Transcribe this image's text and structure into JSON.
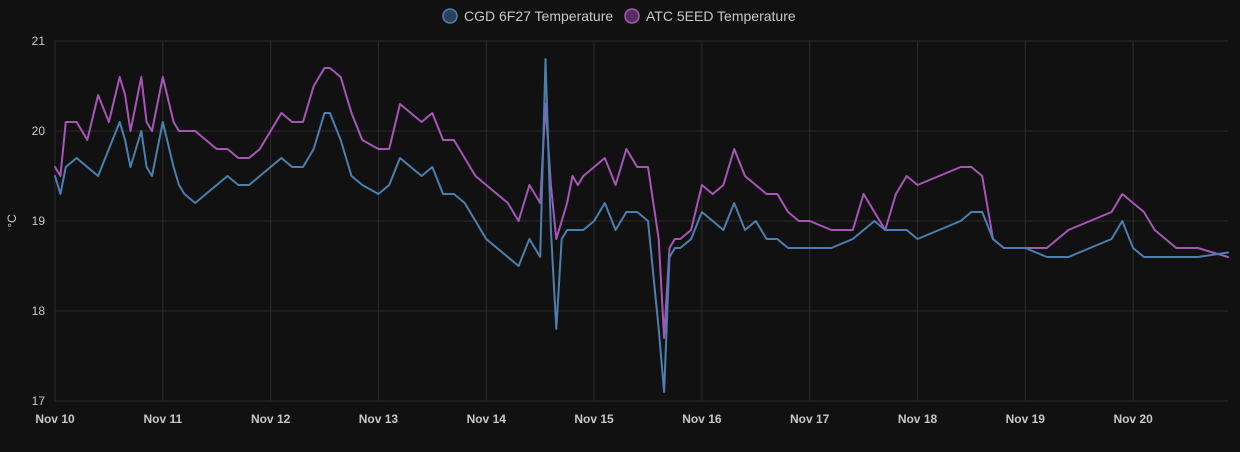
{
  "chart_data": {
    "type": "line",
    "title": "",
    "xlabel": "",
    "ylabel": "°C",
    "ylim": [
      17,
      21
    ],
    "yticks": [
      17,
      18,
      19,
      20,
      21
    ],
    "xlim": [
      0,
      10.88
    ],
    "xticks": [
      {
        "value": 0,
        "label": "Nov 10"
      },
      {
        "value": 1,
        "label": "Nov 11"
      },
      {
        "value": 2,
        "label": "Nov 12"
      },
      {
        "value": 3,
        "label": "Nov 13"
      },
      {
        "value": 4,
        "label": "Nov 14"
      },
      {
        "value": 5,
        "label": "Nov 15"
      },
      {
        "value": 6,
        "label": "Nov 16"
      },
      {
        "value": 7,
        "label": "Nov 17"
      },
      {
        "value": 8,
        "label": "Nov 18"
      },
      {
        "value": 9,
        "label": "Nov 19"
      },
      {
        "value": 10,
        "label": "Nov 20"
      }
    ],
    "grid": true,
    "legend_position": "top-center",
    "series": [
      {
        "name": "CGD 6F27 Temperature",
        "color": "#4a7fb0",
        "x": [
          0,
          0.05,
          0.1,
          0.2,
          0.3,
          0.4,
          0.5,
          0.6,
          0.65,
          0.7,
          0.8,
          0.85,
          0.9,
          1.0,
          1.1,
          1.15,
          1.2,
          1.3,
          1.4,
          1.5,
          1.6,
          1.7,
          1.8,
          1.9,
          2.0,
          2.1,
          2.2,
          2.3,
          2.4,
          2.5,
          2.55,
          2.65,
          2.75,
          2.85,
          3.0,
          3.1,
          3.2,
          3.3,
          3.4,
          3.5,
          3.6,
          3.7,
          3.8,
          3.9,
          4.0,
          4.1,
          4.2,
          4.3,
          4.4,
          4.5,
          4.55,
          4.6,
          4.65,
          4.7,
          4.75,
          4.8,
          4.85,
          4.9,
          5.0,
          5.1,
          5.2,
          5.3,
          5.4,
          5.5,
          5.6,
          5.65,
          5.7,
          5.75,
          5.8,
          5.9,
          6.0,
          6.1,
          6.2,
          6.3,
          6.4,
          6.5,
          6.6,
          6.7,
          6.8,
          6.9,
          7.0,
          7.2,
          7.4,
          7.5,
          7.6,
          7.7,
          7.8,
          7.9,
          8.0,
          8.2,
          8.4,
          8.5,
          8.6,
          8.7,
          8.8,
          9.0,
          9.2,
          9.4,
          9.6,
          9.8,
          9.9,
          10.0,
          10.1,
          10.2,
          10.4,
          10.6,
          10.88
        ],
        "values": [
          19.5,
          19.3,
          19.6,
          19.7,
          19.6,
          19.5,
          19.8,
          20.1,
          19.9,
          19.6,
          20.0,
          19.6,
          19.5,
          20.1,
          19.6,
          19.4,
          19.3,
          19.2,
          19.3,
          19.4,
          19.5,
          19.4,
          19.4,
          19.5,
          19.6,
          19.7,
          19.6,
          19.6,
          19.8,
          20.2,
          20.2,
          19.9,
          19.5,
          19.4,
          19.3,
          19.4,
          19.7,
          19.6,
          19.5,
          19.6,
          19.3,
          19.3,
          19.2,
          19.0,
          18.8,
          18.7,
          18.6,
          18.5,
          18.8,
          18.6,
          20.8,
          18.9,
          17.8,
          18.8,
          18.9,
          18.9,
          18.9,
          18.9,
          19.0,
          19.2,
          18.9,
          19.1,
          19.1,
          19.0,
          17.8,
          17.1,
          18.6,
          18.7,
          18.7,
          18.8,
          19.1,
          19.0,
          18.9,
          19.2,
          18.9,
          19.0,
          18.8,
          18.8,
          18.7,
          18.7,
          18.7,
          18.7,
          18.8,
          18.9,
          19.0,
          18.9,
          18.9,
          18.9,
          18.8,
          18.9,
          19.0,
          19.1,
          19.1,
          18.8,
          18.7,
          18.7,
          18.6,
          18.6,
          18.7,
          18.8,
          19.0,
          18.7,
          18.6,
          18.6,
          18.6,
          18.6,
          18.65
        ]
      },
      {
        "name": "ATC 5EED Temperature",
        "color": "#a855b8",
        "x": [
          0,
          0.05,
          0.1,
          0.2,
          0.3,
          0.4,
          0.5,
          0.6,
          0.65,
          0.7,
          0.8,
          0.85,
          0.9,
          1.0,
          1.1,
          1.15,
          1.2,
          1.3,
          1.4,
          1.5,
          1.6,
          1.7,
          1.8,
          1.9,
          2.0,
          2.1,
          2.2,
          2.3,
          2.4,
          2.5,
          2.55,
          2.65,
          2.75,
          2.85,
          3.0,
          3.1,
          3.2,
          3.3,
          3.4,
          3.5,
          3.6,
          3.7,
          3.8,
          3.9,
          4.0,
          4.1,
          4.2,
          4.3,
          4.4,
          4.5,
          4.55,
          4.6,
          4.65,
          4.7,
          4.75,
          4.8,
          4.85,
          4.9,
          5.0,
          5.1,
          5.2,
          5.3,
          5.4,
          5.5,
          5.6,
          5.65,
          5.7,
          5.75,
          5.8,
          5.9,
          6.0,
          6.1,
          6.2,
          6.3,
          6.4,
          6.5,
          6.6,
          6.7,
          6.8,
          6.9,
          7.0,
          7.2,
          7.4,
          7.5,
          7.6,
          7.7,
          7.8,
          7.9,
          8.0,
          8.2,
          8.4,
          8.5,
          8.6,
          8.7,
          8.8,
          9.0,
          9.2,
          9.4,
          9.6,
          9.8,
          9.9,
          10.0,
          10.1,
          10.2,
          10.4,
          10.6,
          10.88
        ],
        "values": [
          19.6,
          19.5,
          20.1,
          20.1,
          19.9,
          20.4,
          20.1,
          20.6,
          20.4,
          20.0,
          20.6,
          20.1,
          20.0,
          20.6,
          20.1,
          20.0,
          20.0,
          20.0,
          19.9,
          19.8,
          19.8,
          19.7,
          19.7,
          19.8,
          20.0,
          20.2,
          20.1,
          20.1,
          20.5,
          20.7,
          20.7,
          20.6,
          20.2,
          19.9,
          19.8,
          19.8,
          20.3,
          20.2,
          20.1,
          20.2,
          19.9,
          19.9,
          19.7,
          19.5,
          19.4,
          19.3,
          19.2,
          19.0,
          19.4,
          19.2,
          20.3,
          19.4,
          18.8,
          19.0,
          19.2,
          19.5,
          19.4,
          19.5,
          19.6,
          19.7,
          19.4,
          19.8,
          19.6,
          19.6,
          18.8,
          17.7,
          18.7,
          18.8,
          18.8,
          18.9,
          19.4,
          19.3,
          19.4,
          19.8,
          19.5,
          19.4,
          19.3,
          19.3,
          19.1,
          19.0,
          19.0,
          18.9,
          18.9,
          19.3,
          19.1,
          18.9,
          19.3,
          19.5,
          19.4,
          19.5,
          19.6,
          19.6,
          19.5,
          18.8,
          18.7,
          18.7,
          18.7,
          18.9,
          19.0,
          19.1,
          19.3,
          19.2,
          19.1,
          18.9,
          18.7,
          18.7,
          18.6
        ]
      }
    ]
  }
}
